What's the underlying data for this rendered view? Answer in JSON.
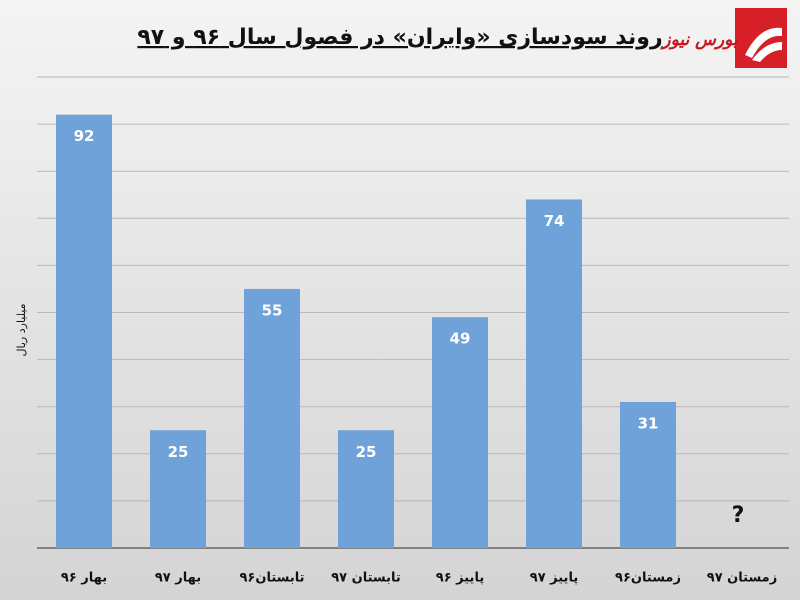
{
  "chart_data": {
    "type": "bar",
    "title": "روند سودسازی «وایران» در فصول سال ۹۶ و ۹۷",
    "logo_text": "بورس نیوز",
    "y_label": "میلیارد ریال",
    "categories": [
      "بهار ۹۶",
      "بهار ۹۷",
      "تابستان۹۶",
      "تابستان ۹۷",
      "پاییز ۹۶",
      "پاییز ۹۷",
      "زمستان۹۶",
      "زمستان ۹۷"
    ],
    "values": [
      92,
      25,
      55,
      25,
      49,
      74,
      31,
      null
    ],
    "annotations": [
      {
        "category_index": 7,
        "text": "?"
      }
    ],
    "color": "#6fa2d8",
    "ylim": [
      0,
      100
    ],
    "yticks": [
      0,
      10,
      20,
      30,
      40,
      50,
      60,
      70,
      80,
      90,
      100
    ],
    "grid": true
  }
}
